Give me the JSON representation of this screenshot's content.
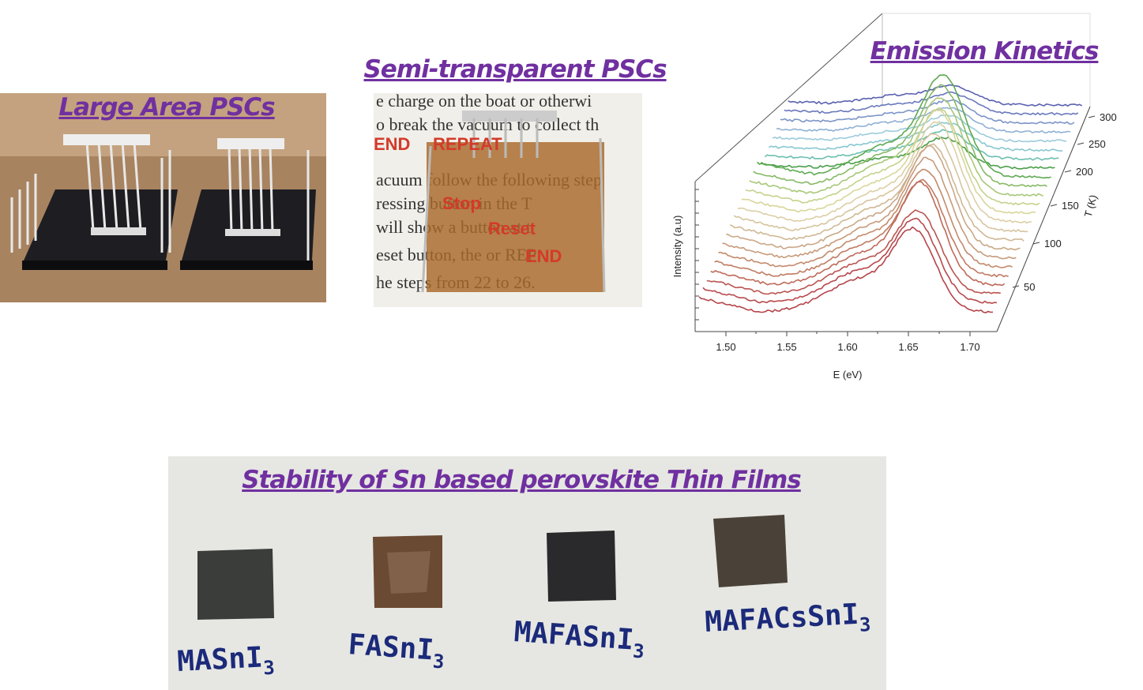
{
  "panels": [
    {
      "title": "Large Area PSCs"
    },
    {
      "title": "Semi-transparent PSCs"
    },
    {
      "title": "Emission Kinetics",
      "x_label": "E (eV)",
      "y_label": "Intensity (a.u)",
      "z_label": "T (K)",
      "x_ticks": [
        "1.50",
        "1.55",
        "1.60",
        "1.65",
        "1.70"
      ],
      "z_ticks": [
        "50",
        "100",
        "150",
        "200",
        "250",
        "300"
      ]
    },
    {
      "title": "Stability of Sn based perovskite Thin Films",
      "samples": [
        {
          "base": "MASnI",
          "sub": "3"
        },
        {
          "base": "FASnI",
          "sub": "3"
        },
        {
          "base": "MAFASnI",
          "sub": "3"
        },
        {
          "base": "MAFACsSnI",
          "sub": "3"
        }
      ]
    }
  ]
}
